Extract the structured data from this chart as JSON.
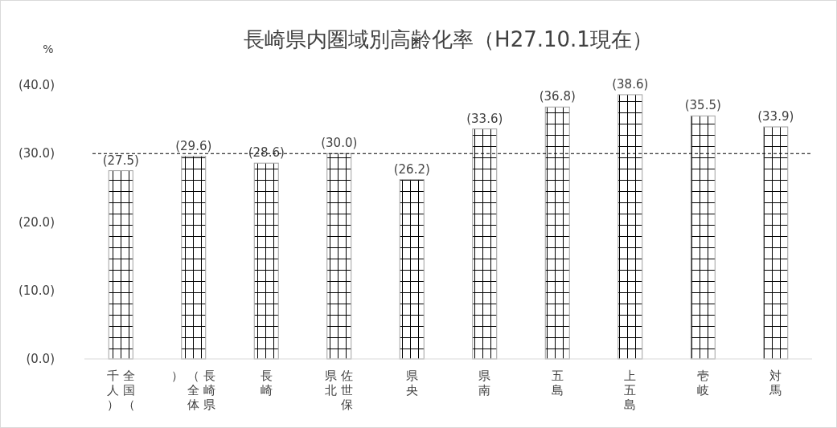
{
  "chart_data": {
    "type": "bar",
    "title": "長崎県内圏域別高齢化率（H27.10.1現在）",
    "ylabel": "%",
    "categories": [
      "全国（千人）",
      "長崎県（全体）",
      "長崎",
      "佐世保県北",
      "県央",
      "県南",
      "五島",
      "上五島",
      "壱岐",
      "対馬"
    ],
    "values": [
      27.5,
      29.6,
      28.6,
      30.0,
      26.2,
      33.6,
      36.8,
      38.6,
      35.5,
      33.9
    ],
    "value_labels": [
      "(27.5)",
      "(29.6)",
      "(28.6)",
      "(30.0)",
      "(26.2)",
      "(33.6)",
      "(36.8)",
      "(38.6)",
      "(35.5)",
      "(33.9)"
    ],
    "ylim": [
      0,
      40
    ],
    "yticks": [
      {
        "value": 0,
        "label": "(0.0)"
      },
      {
        "value": 10,
        "label": "(10.0)"
      },
      {
        "value": 20,
        "label": "(20.0)"
      },
      {
        "value": 30,
        "label": "(30.0)"
      },
      {
        "value": 40,
        "label": "(40.0)"
      }
    ],
    "ref_lines": [
      {
        "axis": "y",
        "value": 30,
        "line_style": "dashed",
        "color": "#000000"
      }
    ]
  }
}
